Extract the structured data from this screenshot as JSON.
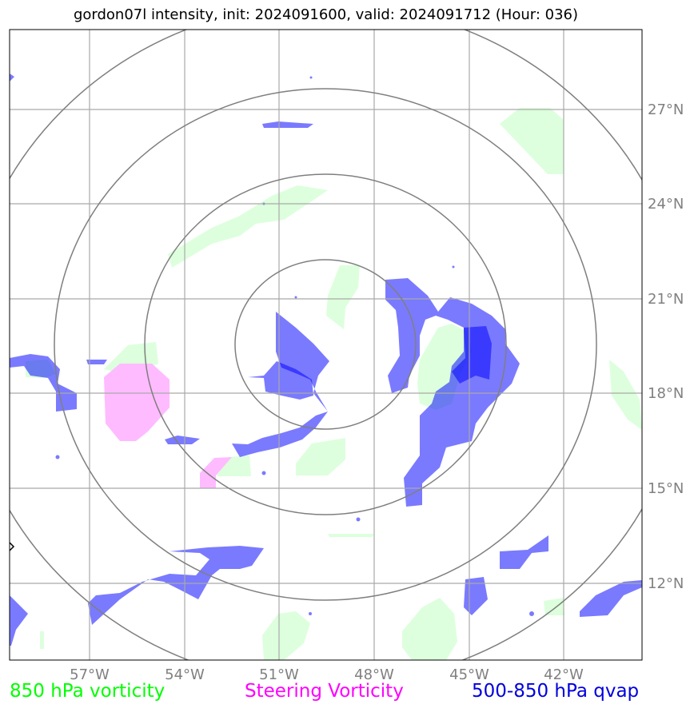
{
  "title": "gordon07l intensity, init: 2024091600, valid: 2024091712 (Hour: 036)",
  "map": {
    "lat_labels": [
      "27°N",
      "24°N",
      "21°N",
      "18°N",
      "15°N",
      "12°N"
    ],
    "lon_labels": [
      "57°W",
      "54°W",
      "51°W",
      "48°W",
      "45°W",
      "42°W"
    ],
    "range_rings": 4
  },
  "legend": {
    "vorticity_850": {
      "label": "850 hPa vorticity",
      "color": "#00ff00"
    },
    "steering": {
      "label": "Steering Vorticity",
      "color": "#ff00ff"
    },
    "qvap": {
      "label": "500-850 hPa qvap",
      "color": "#0000dd"
    }
  },
  "colors": {
    "qvap_fill": "#7b7bff",
    "vort850_fill": "#ddffdd",
    "steering_fill": "#ffbbff",
    "grid": "#a9a9a9",
    "rings": "#7f7f7f"
  }
}
